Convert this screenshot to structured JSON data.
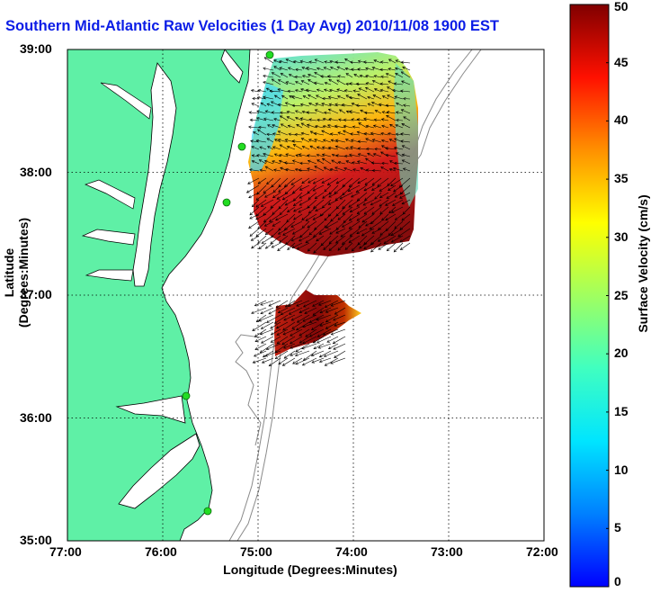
{
  "title": "Southern Mid-Atlantic Raw Velocities (1 Day Avg) 2010/11/08 1900 EST",
  "axes": {
    "xlabel": "Longitude (Degrees:Minutes)",
    "ylabel": "Latitude (Degrees:Minutes)",
    "xticks": [
      "77:00",
      "76:00",
      "75:00",
      "74:00",
      "73:00",
      "72:00"
    ],
    "yticks": [
      "39:00",
      "38:00",
      "37:00",
      "36:00",
      "35:00"
    ],
    "x_range_deg_west": [
      77,
      72
    ],
    "y_range_deg_north": [
      35,
      39
    ],
    "grid": "dotted"
  },
  "colorbar": {
    "label": "Surface Velocity (cm/s)",
    "min": 0,
    "max": 50,
    "ticks": [
      "0",
      "5",
      "10",
      "15",
      "20",
      "25",
      "30",
      "35",
      "40",
      "45",
      "50"
    ],
    "colormap": "jet"
  },
  "map": {
    "land_color": "#5ff0a6",
    "coast_color": "#000000",
    "bathymetry_color": "#8a8a8a",
    "station_color": "#22dd22"
  }
}
